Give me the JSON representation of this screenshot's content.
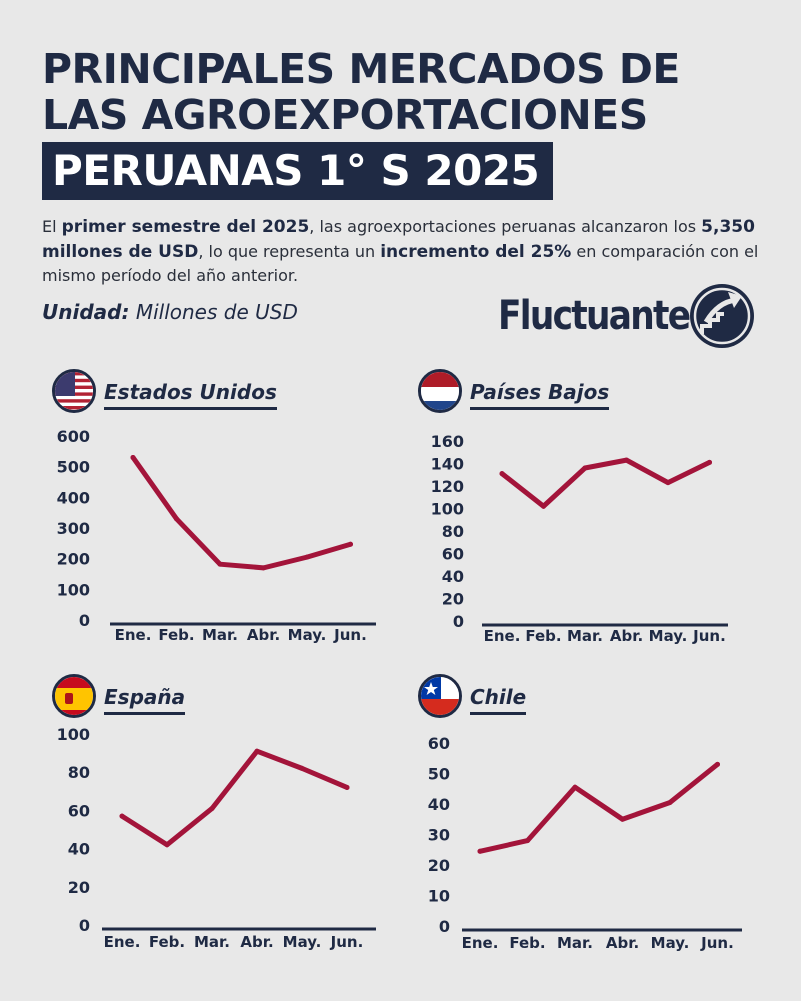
{
  "header": {
    "title_line1": "PRINCIPALES MERCADOS DE",
    "title_line2": "LAS AGROEXPORTACIONES",
    "title_line3": "PERUANAS 1° S 2025"
  },
  "intro": {
    "p1": "El ",
    "b1": "primer semestre del 2025",
    "p2": ", las agroexportaciones peruanas alcanzaron los ",
    "b2": "5,350 millones de USD",
    "p3": ", lo que representa un ",
    "b3": "incremento del 25%",
    "p4": " en comparación con el mismo período del año anterior."
  },
  "unit": {
    "label": "Unidad:",
    "value": " Millones de USD"
  },
  "brand": {
    "name": "Fluctuante",
    "icon": "rising-arrow-logo-icon"
  },
  "colors": {
    "line": "#a3143a",
    "navy": "#1f2a44",
    "background": "#e8e8e8"
  },
  "chart_data": [
    {
      "type": "line",
      "title": "Estados Unidos",
      "flag_icon": "usa-flag-icon",
      "categories": [
        "Ene.",
        "Feb.",
        "Mar.",
        "Abr.",
        "May.",
        "Jun."
      ],
      "values": [
        530,
        330,
        182,
        170,
        205,
        247
      ],
      "yticks": [
        "0",
        "100",
        "200",
        "300",
        "400",
        "500",
        "600"
      ],
      "ylim": [
        0,
        600
      ]
    },
    {
      "type": "line",
      "title": "Países Bajos",
      "flag_icon": "netherlands-flag-icon",
      "categories": [
        "Ene.",
        "Feb.",
        "Mar.",
        "Abr.",
        "May.",
        "Jun."
      ],
      "values": [
        131,
        102,
        136,
        143,
        123,
        141
      ],
      "yticks": [
        "0",
        "20",
        "40",
        "60",
        "80",
        "100",
        "120",
        "140",
        "160"
      ],
      "ylim": [
        0,
        160
      ]
    },
    {
      "type": "line",
      "title": "España",
      "flag_icon": "spain-flag-icon",
      "categories": [
        "Ene.",
        "Feb.",
        "Mar.",
        "Abr.",
        "May.",
        "Jun."
      ],
      "values": [
        57,
        42,
        61,
        91,
        82,
        72
      ],
      "yticks": [
        "0",
        "20",
        "40",
        "60",
        "80",
        "100"
      ],
      "ylim": [
        0,
        100
      ]
    },
    {
      "type": "line",
      "title": "Chile",
      "flag_icon": "chile-flag-icon",
      "categories": [
        "Ene.",
        "Feb.",
        "Mar.",
        "Abr.",
        "May.",
        "Jun."
      ],
      "values": [
        24.5,
        28,
        45.5,
        35,
        40.5,
        53
      ],
      "yticks": [
        "0",
        "10",
        "20",
        "30",
        "40",
        "50",
        "60"
      ],
      "ylim": [
        0,
        60
      ]
    }
  ]
}
